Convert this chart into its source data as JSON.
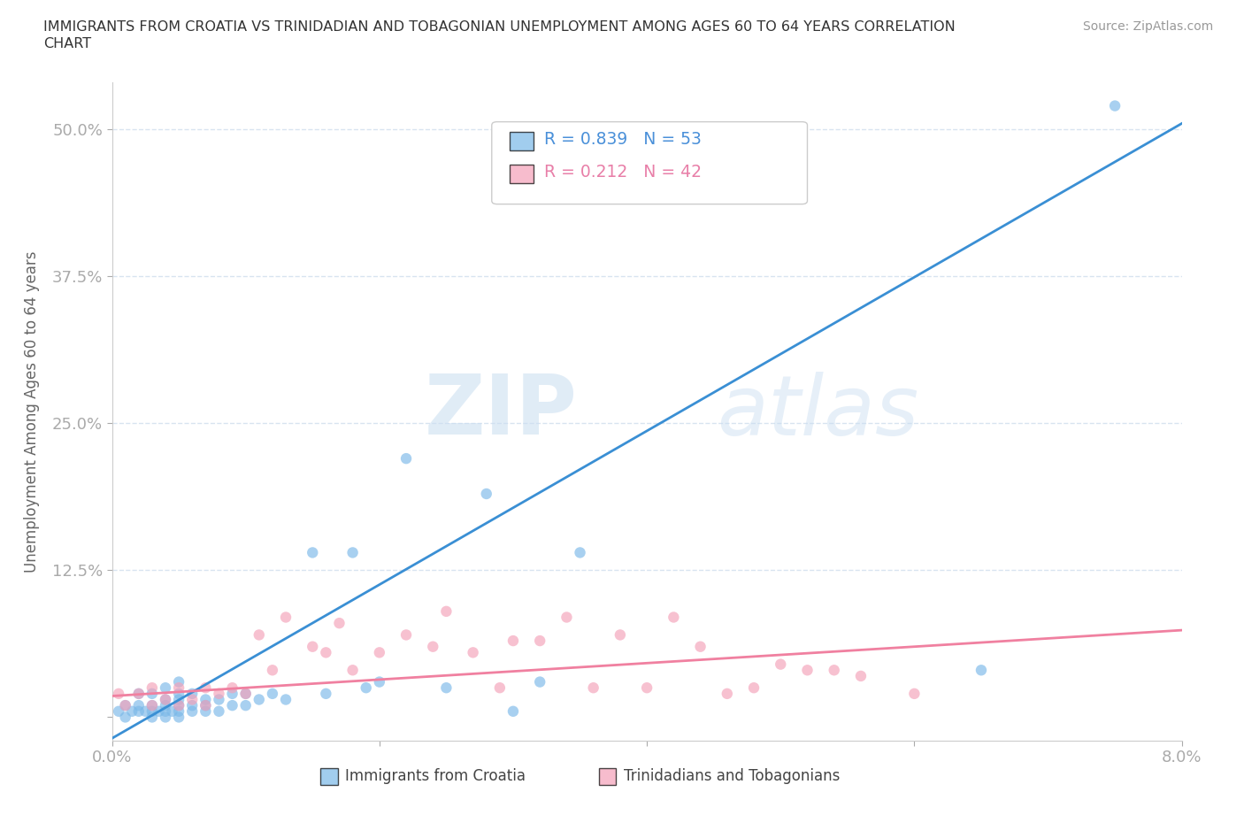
{
  "title_line1": "IMMIGRANTS FROM CROATIA VS TRINIDADIAN AND TOBAGONIAN UNEMPLOYMENT AMONG AGES 60 TO 64 YEARS CORRELATION",
  "title_line2": "CHART",
  "source": "Source: ZipAtlas.com",
  "ylabel": "Unemployment Among Ages 60 to 64 years",
  "xlim": [
    0.0,
    0.08
  ],
  "ylim": [
    -0.02,
    0.54
  ],
  "yticks": [
    0.0,
    0.125,
    0.25,
    0.375,
    0.5
  ],
  "ytick_labels": [
    "",
    "12.5%",
    "25.0%",
    "37.5%",
    "50.0%"
  ],
  "background_color": "#ffffff",
  "grid_color": "#d8e4f0",
  "watermark_zip": "ZIP",
  "watermark_atlas": "atlas",
  "legend1_r": "0.839",
  "legend1_n": "53",
  "legend2_r": "0.212",
  "legend2_n": "42",
  "color_blue": "#7ab8e8",
  "color_pink": "#f4a0b8",
  "color_blue_line": "#3a8fd4",
  "color_pink_line": "#f080a0",
  "blue_line_x": [
    0.0,
    0.08
  ],
  "blue_line_y": [
    -0.018,
    0.505
  ],
  "pink_line_x": [
    0.0,
    0.08
  ],
  "pink_line_y": [
    0.018,
    0.074
  ],
  "blue_scatter_x": [
    0.0005,
    0.001,
    0.001,
    0.0015,
    0.002,
    0.002,
    0.002,
    0.0025,
    0.003,
    0.003,
    0.003,
    0.003,
    0.0035,
    0.004,
    0.004,
    0.004,
    0.004,
    0.004,
    0.0045,
    0.005,
    0.005,
    0.005,
    0.005,
    0.005,
    0.005,
    0.006,
    0.006,
    0.006,
    0.007,
    0.007,
    0.007,
    0.008,
    0.008,
    0.009,
    0.009,
    0.01,
    0.01,
    0.011,
    0.012,
    0.013,
    0.015,
    0.016,
    0.018,
    0.019,
    0.02,
    0.022,
    0.025,
    0.028,
    0.03,
    0.032,
    0.035,
    0.065,
    0.075
  ],
  "blue_scatter_y": [
    0.005,
    0.0,
    0.01,
    0.005,
    0.005,
    0.01,
    0.02,
    0.005,
    0.0,
    0.005,
    0.01,
    0.02,
    0.005,
    0.0,
    0.005,
    0.01,
    0.015,
    0.025,
    0.005,
    0.0,
    0.005,
    0.01,
    0.015,
    0.02,
    0.03,
    0.005,
    0.01,
    0.02,
    0.005,
    0.01,
    0.015,
    0.005,
    0.015,
    0.01,
    0.02,
    0.01,
    0.02,
    0.015,
    0.02,
    0.015,
    0.14,
    0.02,
    0.14,
    0.025,
    0.03,
    0.22,
    0.025,
    0.19,
    0.005,
    0.03,
    0.14,
    0.04,
    0.52
  ],
  "pink_scatter_x": [
    0.0005,
    0.001,
    0.002,
    0.003,
    0.003,
    0.004,
    0.005,
    0.005,
    0.006,
    0.007,
    0.007,
    0.008,
    0.009,
    0.01,
    0.011,
    0.012,
    0.013,
    0.015,
    0.016,
    0.017,
    0.018,
    0.02,
    0.022,
    0.024,
    0.025,
    0.027,
    0.029,
    0.03,
    0.032,
    0.034,
    0.036,
    0.038,
    0.04,
    0.042,
    0.044,
    0.046,
    0.048,
    0.05,
    0.052,
    0.054,
    0.056,
    0.06
  ],
  "pink_scatter_y": [
    0.02,
    0.01,
    0.02,
    0.01,
    0.025,
    0.015,
    0.01,
    0.025,
    0.015,
    0.01,
    0.025,
    0.02,
    0.025,
    0.02,
    0.07,
    0.04,
    0.085,
    0.06,
    0.055,
    0.08,
    0.04,
    0.055,
    0.07,
    0.06,
    0.09,
    0.055,
    0.025,
    0.065,
    0.065,
    0.085,
    0.025,
    0.07,
    0.025,
    0.085,
    0.06,
    0.02,
    0.025,
    0.045,
    0.04,
    0.04,
    0.035,
    0.02
  ]
}
